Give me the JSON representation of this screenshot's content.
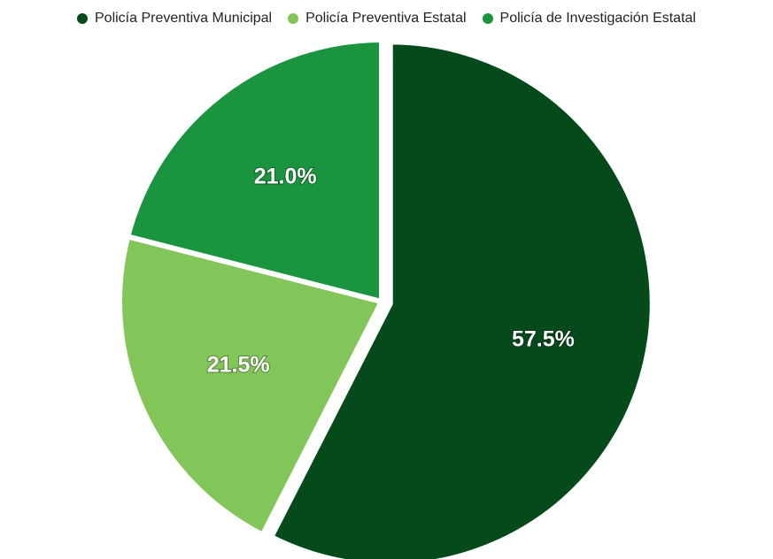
{
  "chart_data": {
    "type": "pie",
    "title": "",
    "categories": [
      "Policía Preventiva Municipal",
      "Policía Preventiva Estatal",
      "Policía de Investigación Estatal"
    ],
    "values": [
      57.5,
      21.5,
      21.0
    ],
    "labels": [
      "57.5%",
      "21.5%",
      "21.0%"
    ],
    "colors": [
      "#044a1a",
      "#82c65a",
      "#1b943f"
    ],
    "legend_position": "top",
    "exploded": "Policía Preventiva Municipal"
  }
}
